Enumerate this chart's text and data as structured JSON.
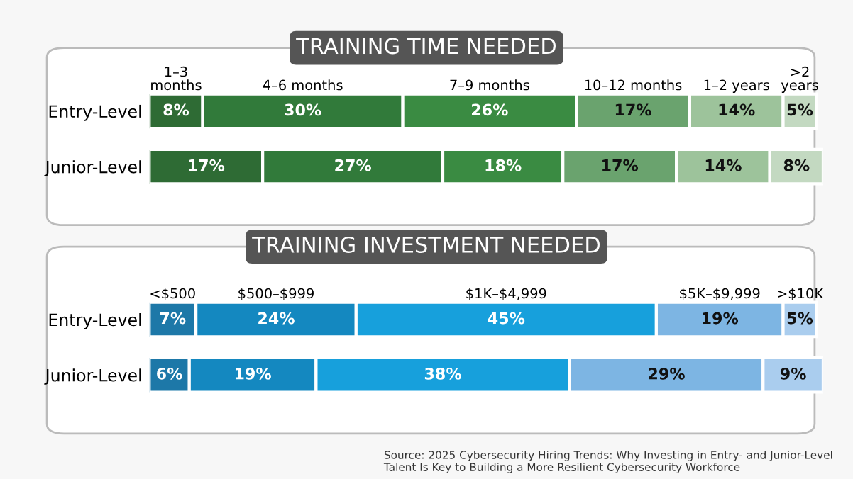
{
  "chart_data": [
    {
      "type": "bar",
      "orientation": "horizontal",
      "stacked": true,
      "legend": false,
      "grid": false,
      "title": "TRAINING TIME NEEDED",
      "categories": [
        "Entry-Level",
        "Junior-Level"
      ],
      "series": [
        {
          "name": "1–3\nmonths",
          "color": "#2e6b34",
          "values": [
            8,
            17
          ],
          "value_labels": [
            "8%",
            "17%"
          ]
        },
        {
          "name": "4–6 months",
          "color": "#317a3a",
          "values": [
            30,
            27
          ],
          "value_labels": [
            "30%",
            "27%"
          ]
        },
        {
          "name": "7–9 months",
          "color": "#3a8b42",
          "values": [
            26,
            18
          ],
          "value_labels": [
            "26%",
            "18%"
          ]
        },
        {
          "name": "10–12 months",
          "color": "#6aa36e",
          "values": [
            17,
            17
          ],
          "value_labels": [
            "17%",
            "17%"
          ]
        },
        {
          "name": "1–2 years",
          "color": "#9dc39b",
          "values": [
            14,
            14
          ],
          "value_labels": [
            "14%",
            "14%"
          ]
        },
        {
          "name": ">2\nyears",
          "color": "#c3d9c1",
          "values": [
            5,
            8
          ],
          "value_labels": [
            "5%",
            "8%"
          ]
        }
      ]
    },
    {
      "type": "bar",
      "orientation": "horizontal",
      "stacked": true,
      "legend": false,
      "grid": false,
      "title": "TRAINING INVESTMENT NEEDED",
      "categories": [
        "Entry-Level",
        "Junior-Level"
      ],
      "series": [
        {
          "name": "<$500",
          "color": "#1d78a8",
          "values": [
            7,
            6
          ],
          "value_labels": [
            "7%",
            "6%"
          ]
        },
        {
          "name": "$500–$999",
          "color": "#1488c0",
          "values": [
            24,
            19
          ],
          "value_labels": [
            "24%",
            "19%"
          ]
        },
        {
          "name": "$1K–$4,999",
          "color": "#17a0dc",
          "values": [
            45,
            38
          ],
          "value_labels": [
            "45%",
            "38%"
          ]
        },
        {
          "name": "$5K–$9,999",
          "color": "#7db5e3",
          "values": [
            19,
            29
          ],
          "value_labels": [
            "19%",
            "29%"
          ]
        },
        {
          "name": ">$10K",
          "color": "#aacdee",
          "values": [
            5,
            9
          ],
          "value_labels": [
            "5%",
            "9%"
          ]
        }
      ],
      "annotations": [
        "Source: 2025 Cybersecurity Hiring Trends: Why Investing in Entry- and Junior-Level Talent Is Key to Building a More Resilient Cybersecurity Workforce"
      ]
    }
  ]
}
